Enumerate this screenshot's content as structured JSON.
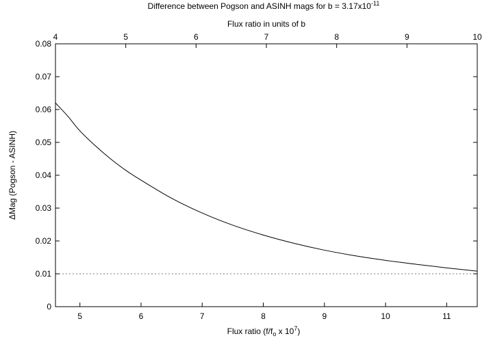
{
  "chart_data": {
    "type": "line",
    "title": {
      "text": "Difference between Pogson and ASINH mags for b = 3.17x10",
      "superscript": "-11"
    },
    "top_axis": {
      "label": "Flux ratio in units of b",
      "range": [
        4,
        10
      ],
      "ticks": [
        "4",
        "5",
        "6",
        "7",
        "8",
        "9",
        "10"
      ]
    },
    "xlabel": {
      "prefix": "Flux ratio (f/f",
      "subscript": "o",
      "middle": " x 10",
      "superscript": "7",
      "suffix": ")"
    },
    "ylabel": "ΔMag (Pogson - ASINH)",
    "xlim": [
      4.6,
      11.5
    ],
    "ylim": [
      0,
      0.08
    ],
    "x_ticks": [
      "5",
      "6",
      "7",
      "8",
      "9",
      "10",
      "11"
    ],
    "y_ticks": [
      "0",
      "0.01",
      "0.02",
      "0.03",
      "0.04",
      "0.05",
      "0.06",
      "0.07",
      "0.08"
    ],
    "reference_line": {
      "y": 0.01,
      "style": "dotted"
    },
    "series": [
      {
        "color": "#000000",
        "x": [
          4.6,
          4.8,
          5.0,
          5.25,
          5.5,
          5.75,
          6.0,
          6.5,
          7.0,
          7.5,
          8.0,
          8.5,
          9.0,
          9.5,
          10.0,
          10.5,
          11.0,
          11.5
        ],
        "y": [
          0.062,
          0.058,
          0.0535,
          0.049,
          0.045,
          0.0415,
          0.0385,
          0.033,
          0.0285,
          0.0248,
          0.0218,
          0.0193,
          0.0172,
          0.0155,
          0.0141,
          0.0129,
          0.0118,
          0.0108
        ]
      }
    ]
  }
}
